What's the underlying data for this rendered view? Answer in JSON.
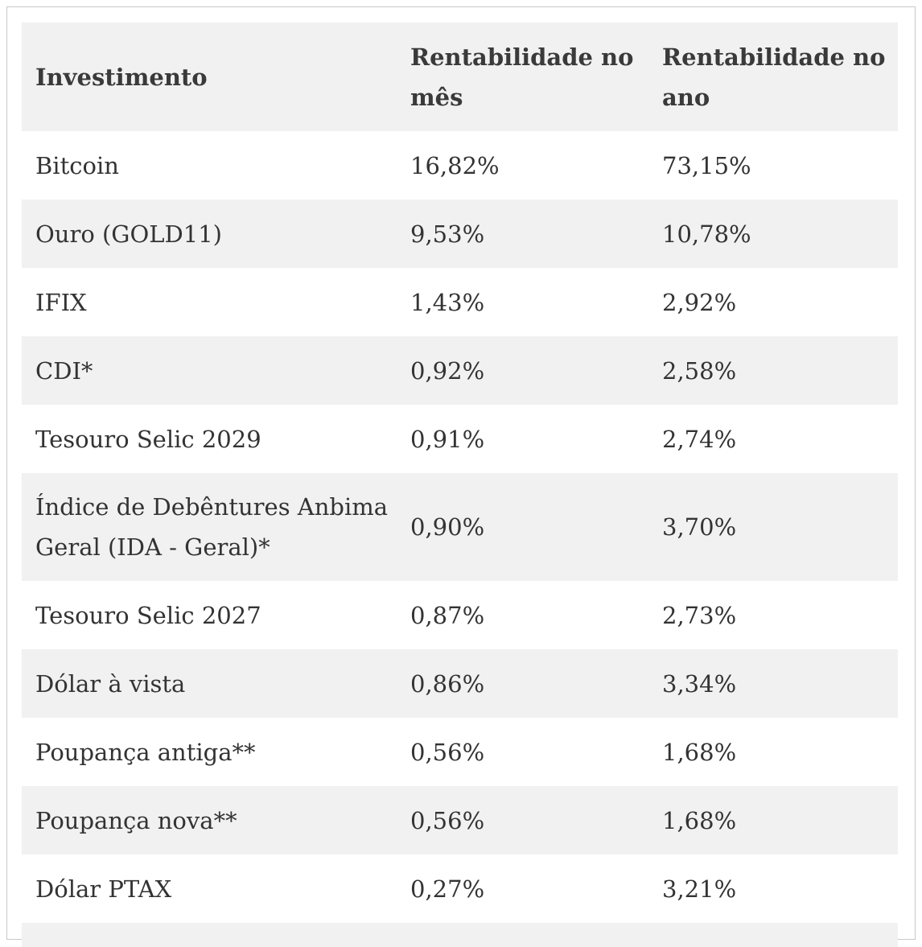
{
  "table": {
    "headers": [
      "Investimento",
      "Rentabilidade no mês",
      "Rentabilidade no ano"
    ],
    "rows": [
      {
        "name": "Bitcoin",
        "month": "16,82%",
        "year": "73,15%"
      },
      {
        "name": "Ouro (GOLD11)",
        "month": "9,53%",
        "year": "10,78%"
      },
      {
        "name": "IFIX",
        "month": "1,43%",
        "year": "2,92%"
      },
      {
        "name": "CDI*",
        "month": "0,92%",
        "year": "2,58%"
      },
      {
        "name": "Tesouro Selic 2029",
        "month": "0,91%",
        "year": "2,74%"
      },
      {
        "name": "Índice de Debêntures Anbima Geral (IDA - Geral)*",
        "month": "0,90%",
        "year": "3,70%"
      },
      {
        "name": "Tesouro Selic 2027",
        "month": "0,87%",
        "year": "2,73%"
      },
      {
        "name": "Dólar à vista",
        "month": "0,86%",
        "year": "3,34%"
      },
      {
        "name": "Poupança antiga**",
        "month": "0,56%",
        "year": "1,68%"
      },
      {
        "name": "Poupança nova**",
        "month": "0,56%",
        "year": "1,68%"
      },
      {
        "name": "Dólar PTAX",
        "month": "0,27%",
        "year": "3,21%"
      }
    ]
  }
}
